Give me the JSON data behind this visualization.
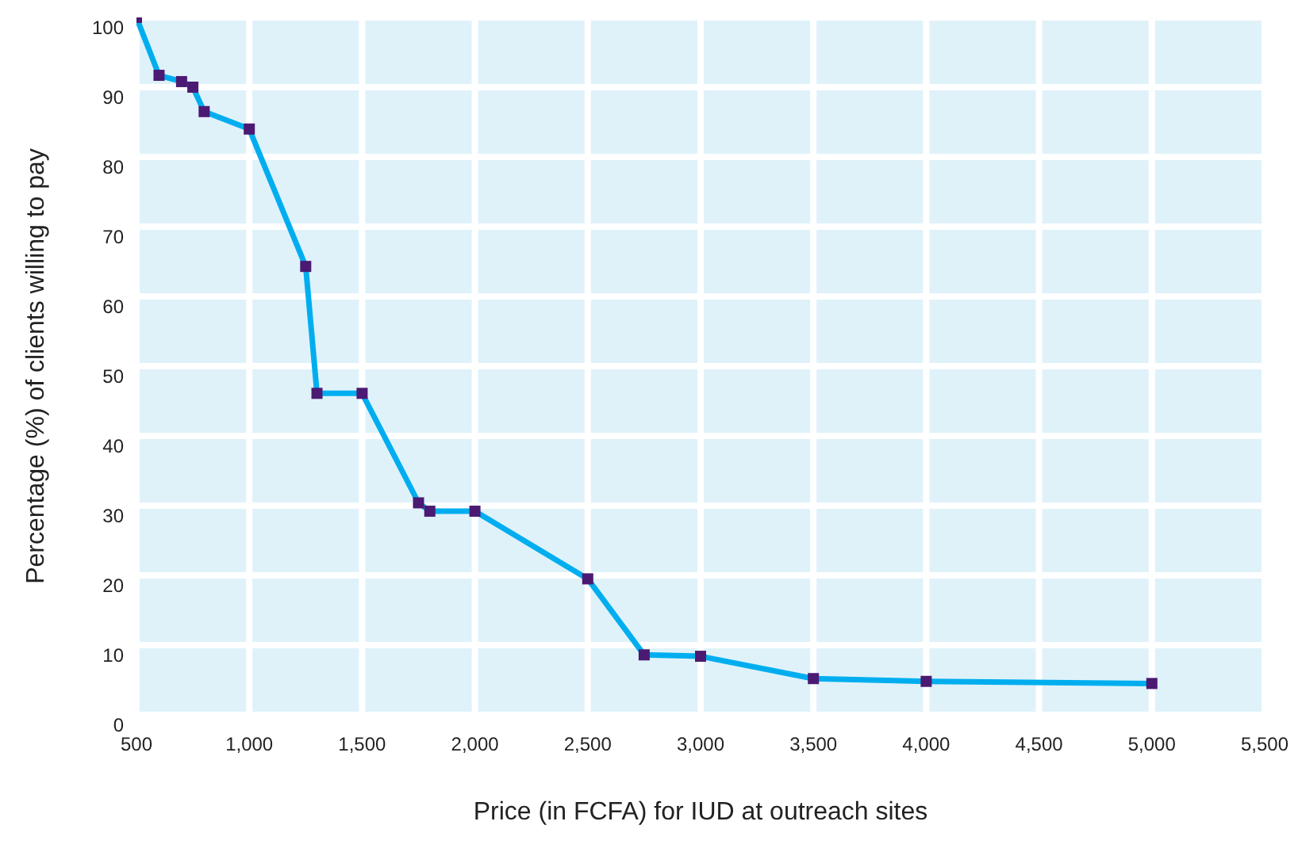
{
  "chart_data": {
    "type": "line",
    "xlabel": "Price (in FCFA) for IUD at outreach sites",
    "ylabel": "Percentage (%) of clients willing to pay",
    "x": [
      500,
      600,
      700,
      750,
      800,
      1000,
      1250,
      1300,
      1500,
      1750,
      1800,
      2000,
      2500,
      2750,
      3000,
      3500,
      4000,
      5000
    ],
    "series": [
      {
        "color": "#00aeef",
        "values": [
          100,
          91.7,
          90.8,
          90,
          86.5,
          84,
          64.3,
          46.1,
          46.1,
          30.4,
          29.2,
          29.2,
          19.5,
          8.6,
          8.4,
          5.2,
          4.8,
          4.5
        ]
      }
    ],
    "marker": "square",
    "grid": true,
    "legend": false,
    "xlim": [
      500,
      5500
    ],
    "xticks": [
      {
        "value": 500,
        "label": "500"
      },
      {
        "value": 1000,
        "label": "1,000"
      },
      {
        "value": 1500,
        "label": "1,500"
      },
      {
        "value": 2000,
        "label": "2,000"
      },
      {
        "value": 2500,
        "label": "2,500"
      },
      {
        "value": 3000,
        "label": "3,000"
      },
      {
        "value": 3500,
        "label": "3,500"
      },
      {
        "value": 4000,
        "label": "4,000"
      },
      {
        "value": 4500,
        "label": "4,500"
      },
      {
        "value": 5000,
        "label": "5,000"
      },
      {
        "value": 5500,
        "label": "5,500"
      }
    ],
    "ylim": [
      0,
      100
    ],
    "yticks": [
      0,
      10,
      20,
      30,
      40,
      50,
      60,
      70,
      80,
      90,
      100
    ]
  }
}
